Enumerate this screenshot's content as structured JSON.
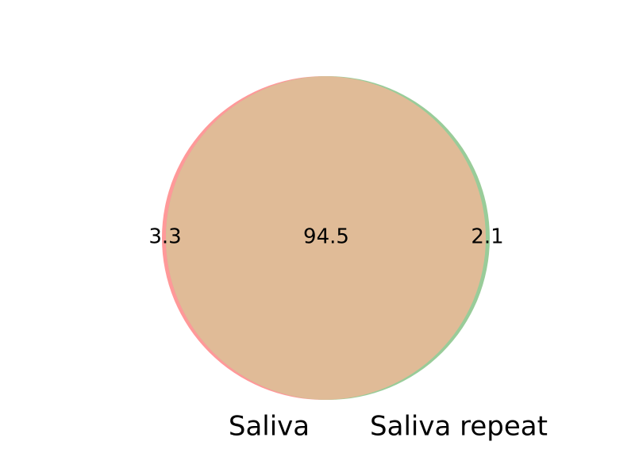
{
  "venn": {
    "sets": [
      {
        "name": "Saliva",
        "color": "#ff9999"
      },
      {
        "name": "Saliva repeat",
        "color": "#99cc99"
      }
    ],
    "overlap_color": "#e0bb97",
    "regions": {
      "saliva_only": "3.3",
      "both": "94.5",
      "saliva_repeat_only": "2.1"
    }
  }
}
